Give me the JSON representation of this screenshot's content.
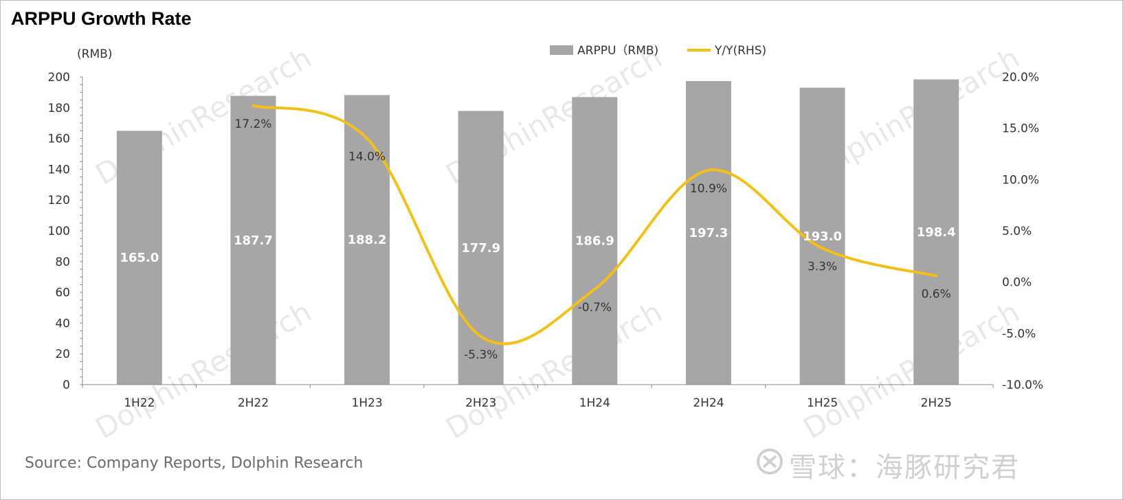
{
  "title": "ARPPU Growth Rate",
  "source": "Source: Company Reports, Dolphin Research",
  "watermark": {
    "text": "DolphinResearch",
    "brand": "雪球：海豚研究君"
  },
  "colors": {
    "bar": "#a6a6a6",
    "line": "#f5c016",
    "axis": "#888888",
    "bar_label": "#ffffff",
    "watermark": "#e8e8e8"
  },
  "chart_data": {
    "type": "bar",
    "categories": [
      "1H22",
      "2H22",
      "1H23",
      "2H23",
      "1H24",
      "2H24",
      "1H25",
      "2H25"
    ],
    "series": [
      {
        "name": "ARPPU（RMB)",
        "type": "bar",
        "axis": "left",
        "values": [
          165.0,
          187.7,
          188.2,
          177.9,
          186.9,
          197.3,
          193.0,
          198.4
        ],
        "labels": [
          "165.0",
          "187.7",
          "188.2",
          "177.9",
          "186.9",
          "197.3",
          "193.0",
          "198.4"
        ]
      },
      {
        "name": "Y/Y(RHS)",
        "type": "line",
        "axis": "right",
        "values": [
          null,
          17.2,
          14.0,
          -5.3,
          -0.7,
          10.9,
          3.3,
          0.6
        ],
        "labels": [
          "",
          "17.2%",
          "14.0%",
          "-5.3%",
          "-0.7%",
          "10.9%",
          "3.3%",
          "0.6%"
        ]
      }
    ],
    "y_left": {
      "unit": "(RMB)",
      "ylim": [
        0,
        200
      ],
      "ticks": [
        "0",
        "20",
        "40",
        "60",
        "80",
        "100",
        "120",
        "140",
        "160",
        "180",
        "200"
      ]
    },
    "y_right": {
      "ylim": [
        -10,
        20
      ],
      "ticks": [
        "-10.0%",
        "-5.0%",
        "0.0%",
        "5.0%",
        "10.0%",
        "15.0%",
        "20.0%"
      ]
    },
    "legend_position": "top-right",
    "grid": false
  }
}
